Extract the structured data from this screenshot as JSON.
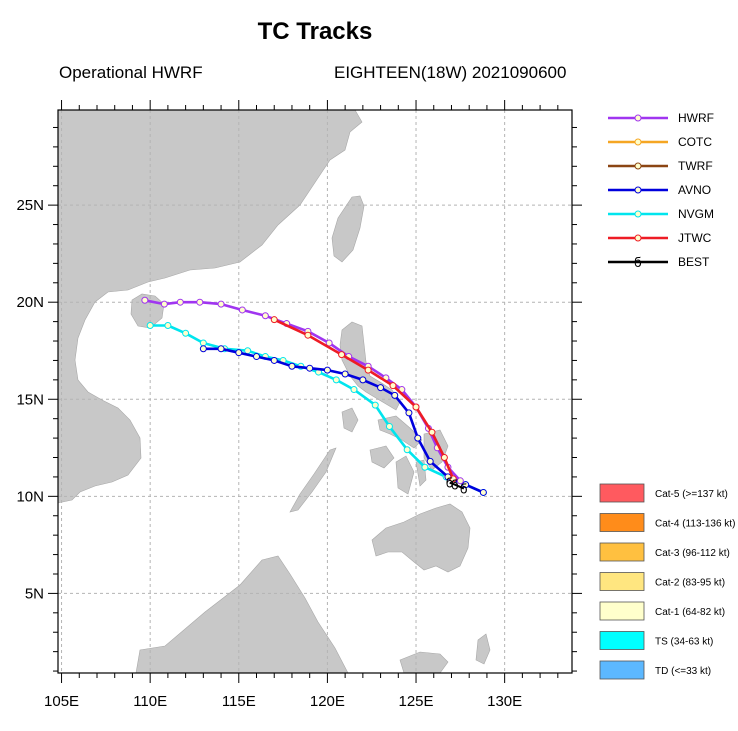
{
  "title": "TC Tracks",
  "model_label": "Operational HWRF",
  "storm_label": "EIGHTEEN(18W) 2021090600",
  "colors": {
    "land": "#c8c8c8",
    "ocean": "#ffffff",
    "grid": "#b4b4b4"
  },
  "axes": {
    "x_ticks": [
      "105E",
      "110E",
      "115E",
      "120E",
      "125E",
      "130E"
    ],
    "y_ticks": [
      "5N",
      "10N",
      "15N",
      "20N",
      "25N"
    ]
  },
  "legend": [
    {
      "name": "HWRF",
      "color": "#a035f0"
    },
    {
      "name": "COTC",
      "color": "#f5a623"
    },
    {
      "name": "TWRF",
      "color": "#8b4513"
    },
    {
      "name": "AVNO",
      "color": "#0000dd"
    },
    {
      "name": "NVGM",
      "color": "#00e5ee"
    },
    {
      "name": "JTWC",
      "color": "#ee1c25"
    },
    {
      "name": "BEST",
      "color": "#000000"
    }
  ],
  "intensity_legend": [
    {
      "label": "Cat-5 (>=137 kt)",
      "color": "#ff5a5f"
    },
    {
      "label": "Cat-4 (113-136 kt)",
      "color": "#ff8c1a"
    },
    {
      "label": "Cat-3 (96-112 kt)",
      "color": "#ffc040"
    },
    {
      "label": "Cat-2 (83-95 kt)",
      "color": "#ffe680"
    },
    {
      "label": "Cat-1 (64-82 kt)",
      "color": "#ffffcc"
    },
    {
      "label": "TS (34-63 kt)",
      "color": "#00ffff"
    },
    {
      "label": "TD (<=33 kt)",
      "color": "#5cb8ff"
    }
  ],
  "tracks": [
    {
      "name": "NVGM",
      "color": "#00e5ee",
      "points": [
        [
          128.8,
          10.2
        ],
        [
          127.8,
          10.6
        ],
        [
          126.7,
          11.0
        ],
        [
          125.5,
          11.5
        ],
        [
          124.5,
          12.4
        ],
        [
          123.5,
          13.6
        ],
        [
          122.7,
          14.7
        ],
        [
          121.5,
          15.5
        ],
        [
          120.5,
          16.0
        ],
        [
          119.5,
          16.4
        ],
        [
          118.5,
          16.7
        ],
        [
          117.5,
          17.0
        ],
        [
          116.5,
          17.2
        ],
        [
          115.5,
          17.5
        ],
        [
          114.2,
          17.6
        ],
        [
          113.0,
          17.9
        ],
        [
          112.0,
          18.4
        ],
        [
          111.0,
          18.8
        ],
        [
          110.0,
          18.8
        ]
      ]
    },
    {
      "name": "AVNO",
      "color": "#0000dd",
      "points": [
        [
          128.8,
          10.2
        ],
        [
          127.8,
          10.6
        ],
        [
          126.8,
          11.0
        ],
        [
          125.8,
          11.8
        ],
        [
          125.1,
          13.0
        ],
        [
          124.6,
          14.3
        ],
        [
          123.8,
          15.2
        ],
        [
          123.0,
          15.6
        ],
        [
          122.0,
          16.0
        ],
        [
          121.0,
          16.3
        ],
        [
          120.0,
          16.5
        ],
        [
          119.0,
          16.6
        ],
        [
          118.0,
          16.7
        ],
        [
          117.0,
          17.0
        ],
        [
          116.0,
          17.2
        ],
        [
          115.0,
          17.4
        ],
        [
          114.0,
          17.6
        ],
        [
          113.0,
          17.6
        ]
      ]
    },
    {
      "name": "HWRF",
      "color": "#a035f0",
      "points": [
        [
          127.5,
          10.8
        ],
        [
          126.8,
          11.5
        ],
        [
          126.2,
          12.5
        ],
        [
          125.7,
          13.5
        ],
        [
          125.0,
          14.6
        ],
        [
          124.2,
          15.5
        ],
        [
          123.3,
          16.1
        ],
        [
          122.3,
          16.7
        ],
        [
          121.2,
          17.2
        ],
        [
          120.1,
          17.9
        ],
        [
          118.9,
          18.5
        ],
        [
          117.7,
          18.9
        ],
        [
          116.5,
          19.3
        ],
        [
          115.2,
          19.6
        ],
        [
          114.0,
          19.9
        ],
        [
          112.8,
          20.0
        ],
        [
          111.7,
          20.0
        ],
        [
          110.8,
          19.9
        ],
        [
          109.7,
          20.1
        ]
      ]
    },
    {
      "name": "JTWC",
      "color": "#ee1c25",
      "points": [
        [
          127.1,
          10.9
        ],
        [
          126.6,
          12.0
        ],
        [
          125.9,
          13.3
        ],
        [
          125.0,
          14.6
        ],
        [
          123.7,
          15.7
        ],
        [
          122.3,
          16.5
        ],
        [
          120.8,
          17.3
        ],
        [
          118.9,
          18.3
        ],
        [
          117.0,
          19.1
        ]
      ]
    },
    {
      "name": "BEST",
      "color": "#000000",
      "points": [
        [
          127.7,
          10.4
        ],
        [
          127.2,
          10.6
        ],
        [
          126.9,
          10.7
        ]
      ]
    }
  ]
}
